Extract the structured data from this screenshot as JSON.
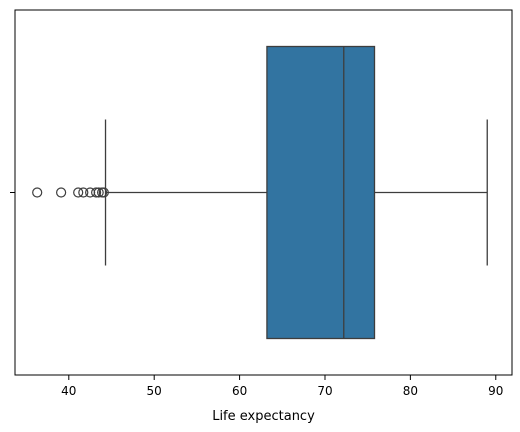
{
  "chart_data": {
    "type": "boxplot",
    "orientation": "horizontal",
    "xlabel": "Life expectancy",
    "ylabel": "",
    "xlim": [
      33.7,
      91.9
    ],
    "xticks": [
      40,
      50,
      60,
      70,
      80,
      90
    ],
    "xtick_labels": [
      "40",
      "50",
      "60",
      "70",
      "80",
      "90"
    ],
    "grid": false,
    "box": {
      "whisker_low": 44.3,
      "q1": 63.2,
      "median": 72.2,
      "q3": 75.8,
      "whisker_high": 89.0
    },
    "outliers": [
      36.3,
      39.1,
      41.1,
      41.7,
      42.5,
      43.2,
      43.5,
      43.9,
      44.1
    ],
    "colors": {
      "box_fill": "#3274a1",
      "line": "#3d3d3d",
      "axis": "#000000"
    }
  }
}
